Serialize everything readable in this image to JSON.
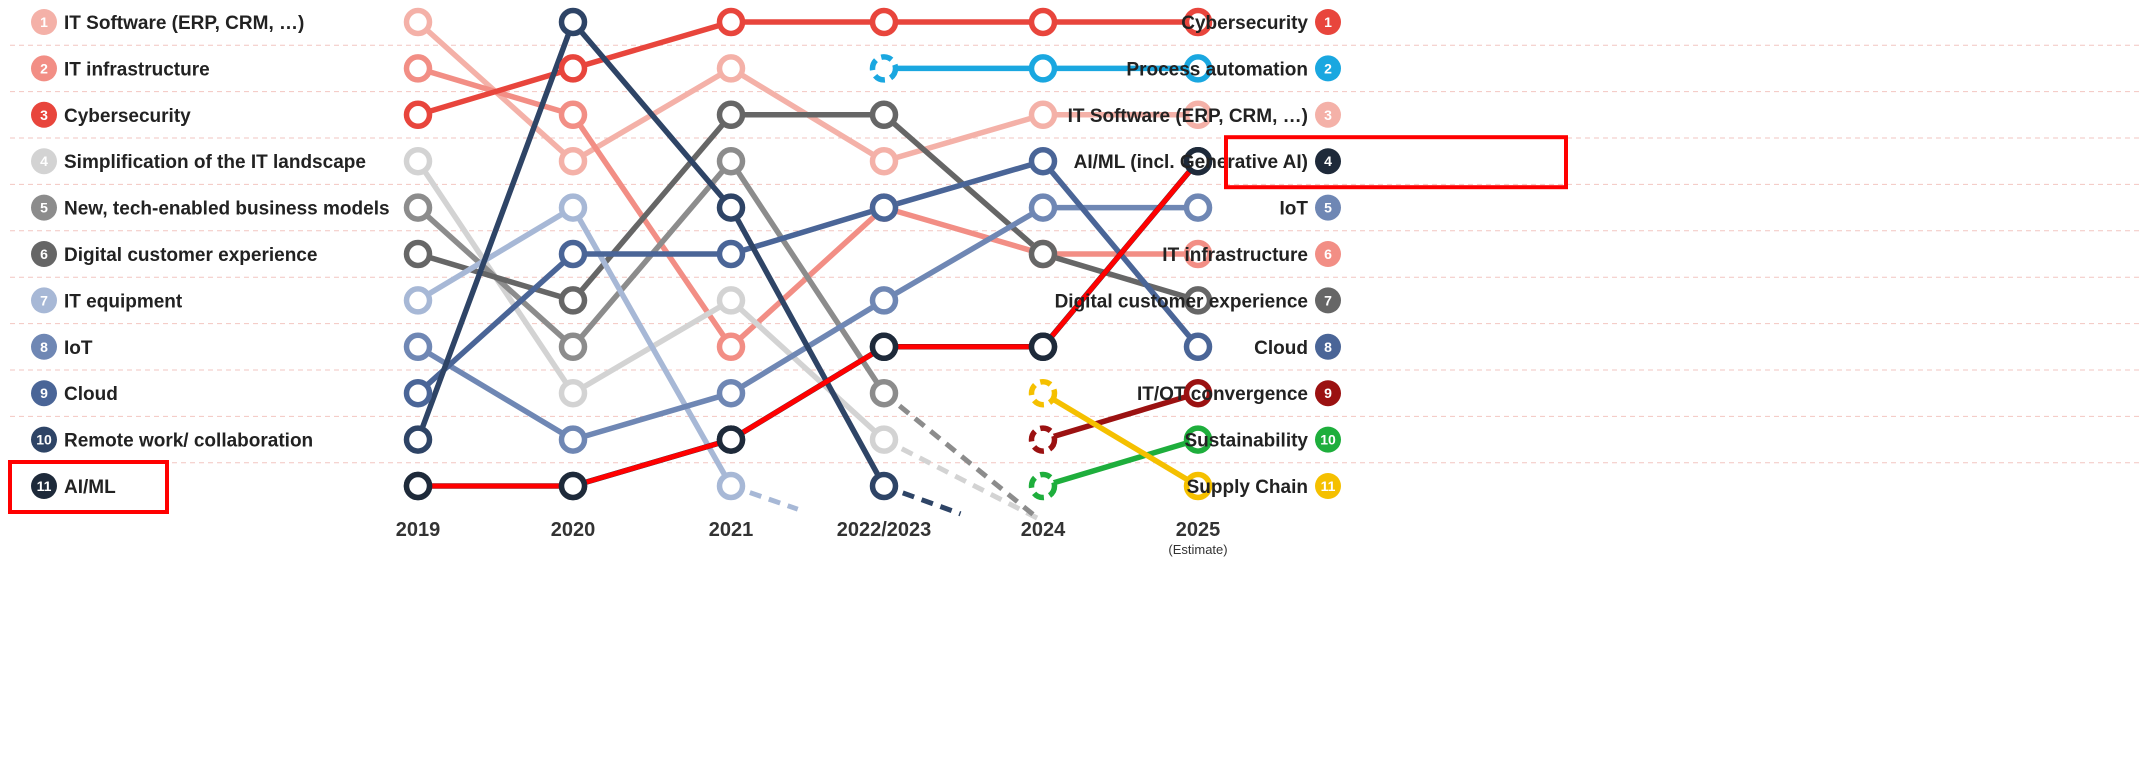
{
  "chart_data": {
    "type": "line",
    "subtype": "bump",
    "x": [
      "2019",
      "2020",
      "2021",
      "2022/2023",
      "2024",
      "2025"
    ],
    "x_sub": [
      "",
      "",
      "",
      "",
      "",
      "(Estimate)"
    ],
    "ylim": [
      1,
      11
    ],
    "y_inverted": true,
    "grid": "dashed-horizontal",
    "left_labels": [
      {
        "rank": "1",
        "label": "IT Software (ERP, CRM, …)",
        "color": "#F4B1A8"
      },
      {
        "rank": "2",
        "label": "IT infrastructure",
        "color": "#F28E85"
      },
      {
        "rank": "3",
        "label": "Cybersecurity",
        "color": "#E8453C"
      },
      {
        "rank": "4",
        "label": "Simplification of the IT landscape",
        "color": "#D3D3D3"
      },
      {
        "rank": "5",
        "label": "New, tech-enabled business models",
        "color": "#8C8C8C"
      },
      {
        "rank": "6",
        "label": "Digital customer experience",
        "color": "#666666"
      },
      {
        "rank": "7",
        "label": "IT equipment",
        "color": "#A7B8D6"
      },
      {
        "rank": "8",
        "label": "IoT",
        "color": "#6F87B4"
      },
      {
        "rank": "9",
        "label": "Cloud",
        "color": "#4A6597"
      },
      {
        "rank": "10",
        "label": "Remote work/ collaboration",
        "color": "#2E4466"
      },
      {
        "rank": "11",
        "label": "AI/ML",
        "color": "#1E2A3A"
      }
    ],
    "right_labels": [
      {
        "rank": "1",
        "label": "Cybersecurity",
        "color": "#E8453C"
      },
      {
        "rank": "2",
        "label": "Process automation",
        "color": "#1AA7E0"
      },
      {
        "rank": "3",
        "label": "IT Software (ERP, CRM, …)",
        "color": "#F4B1A8"
      },
      {
        "rank": "4",
        "label": "AI/ML (incl. Generative AI)",
        "color": "#1E2A3A"
      },
      {
        "rank": "5",
        "label": "IoT",
        "color": "#6F87B4"
      },
      {
        "rank": "6",
        "label": "IT infrastructure",
        "color": "#F28E85"
      },
      {
        "rank": "7",
        "label": "Digital customer experience",
        "color": "#666666"
      },
      {
        "rank": "8",
        "label": "Cloud",
        "color": "#4A6597"
      },
      {
        "rank": "9",
        "label": "IT/OT convergence",
        "color": "#9B1111"
      },
      {
        "rank": "10",
        "label": "Sustainability",
        "color": "#1EAE3C"
      },
      {
        "rank": "11",
        "label": "Supply Chain",
        "color": "#F5C000"
      }
    ],
    "series": [
      {
        "key": "it_software",
        "color": "#F4B1A8",
        "ranks": [
          1,
          4,
          2,
          4,
          3,
          3
        ]
      },
      {
        "key": "it_infrastructure",
        "color": "#F28E85",
        "ranks": [
          2,
          3,
          8,
          5,
          6,
          6
        ]
      },
      {
        "key": "cybersecurity",
        "color": "#E8453C",
        "ranks": [
          3,
          2,
          1,
          1,
          1,
          1
        ]
      },
      {
        "key": "simplification",
        "color": "#D3D3D3",
        "ranks": [
          4,
          9,
          7,
          10,
          null,
          null
        ],
        "dashed_to": [
          4,
          11.7
        ]
      },
      {
        "key": "new_business_models",
        "color": "#8C8C8C",
        "ranks": [
          5,
          8,
          4,
          9,
          null,
          null
        ],
        "dashed_to": [
          4,
          11.7
        ]
      },
      {
        "key": "digital_cx",
        "color": "#666666",
        "ranks": [
          6,
          7,
          3,
          3,
          6,
          7
        ]
      },
      {
        "key": "it_equipment",
        "color": "#A7B8D6",
        "ranks": [
          7,
          5,
          11,
          null,
          null,
          null
        ],
        "dashed_to": [
          2.45,
          11.5
        ]
      },
      {
        "key": "iot",
        "color": "#6F87B4",
        "ranks": [
          8,
          10,
          9,
          7,
          5,
          5
        ]
      },
      {
        "key": "cloud",
        "color": "#4A6597",
        "ranks": [
          9,
          6,
          6,
          5,
          4,
          8
        ]
      },
      {
        "key": "remote_work",
        "color": "#2E4466",
        "ranks": [
          10,
          1,
          5,
          11,
          null,
          null
        ],
        "dashed_to": [
          3.5,
          11.6
        ]
      },
      {
        "key": "ai_ml",
        "color": "#1E2A3A",
        "ranks": [
          11,
          11,
          10,
          8,
          8,
          4
        ]
      },
      {
        "key": "process_automation",
        "color": "#1AA7E0",
        "ranks": [
          null,
          null,
          null,
          2,
          2,
          2
        ],
        "new_at": 3
      },
      {
        "key": "it_ot_convergence",
        "color": "#9B1111",
        "ranks": [
          null,
          null,
          null,
          null,
          10,
          9
        ],
        "new_at": 4
      },
      {
        "key": "sustainability",
        "color": "#1EAE3C",
        "ranks": [
          null,
          null,
          null,
          null,
          11,
          10
        ],
        "new_at": 4
      },
      {
        "key": "supply_chain",
        "color": "#F5C000",
        "ranks": [
          null,
          null,
          null,
          null,
          9,
          11
        ],
        "new_at": 4
      }
    ],
    "highlight_path": {
      "color": "#FF0000",
      "ranks": [
        11,
        11,
        10,
        8,
        8,
        4
      ]
    },
    "highlight_boxes": [
      "left-11",
      "right-4"
    ]
  }
}
